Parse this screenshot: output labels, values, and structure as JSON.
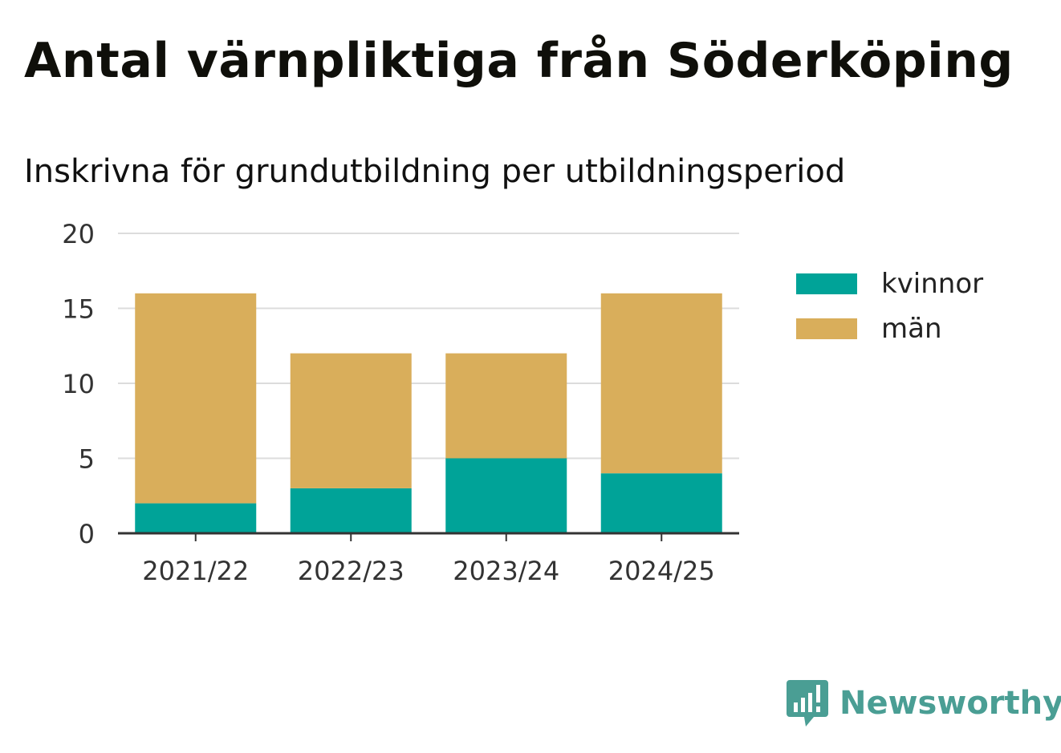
{
  "header": {
    "title": "Antal värnpliktiga från Söderköping",
    "subtitle": "Inskrivna för grundutbildning per utbildningsperiod"
  },
  "brand": {
    "name": "Newsworthy",
    "icon": "newsworthy-logo-icon",
    "color": "#4a9e94"
  },
  "chart_data": {
    "type": "bar",
    "stacked": true,
    "title": "Antal värnpliktiga från Söderköping",
    "subtitle": "Inskrivna för grundutbildning per utbildningsperiod",
    "xlabel": "",
    "ylabel": "",
    "categories": [
      "2021/22",
      "2022/23",
      "2023/24",
      "2024/25"
    ],
    "series": [
      {
        "name": "kvinnor",
        "color": "#00a398",
        "values": [
          2,
          3,
          5,
          4
        ]
      },
      {
        "name": "män",
        "color": "#d9ae5b",
        "values": [
          14,
          9,
          7,
          12
        ]
      }
    ],
    "ylim": [
      0,
      20
    ],
    "yticks": [
      0,
      5,
      10,
      15,
      20
    ],
    "grid": true,
    "legend": "right"
  }
}
